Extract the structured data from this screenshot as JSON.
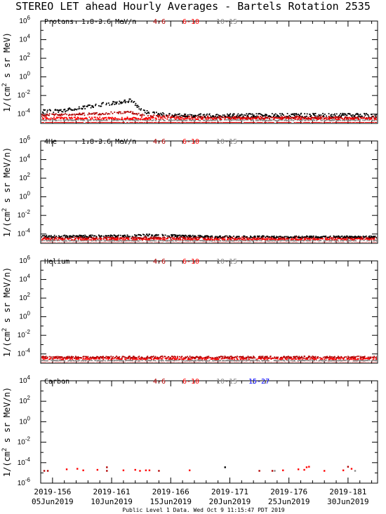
{
  "title": "STEREO LET ahead Hourly Averages - Bartels Rotation 2535",
  "footer": "Public Level 1 Data. Wed Oct  9 11:15:47 PDT 2019",
  "colors": {
    "black": "#000000",
    "dark_red": "#b00000",
    "red": "#ff0000",
    "gray": "#8a8a8a",
    "blue": "#0000ff"
  },
  "x_axis": {
    "range_day_of_year": [
      155,
      183.5
    ],
    "ticks": [
      {
        "day": 156,
        "doy": "2019-156",
        "date": "05Jun2019"
      },
      {
        "day": 161,
        "doy": "2019-161",
        "date": "10Jun2019"
      },
      {
        "day": 166,
        "doy": "2019-166",
        "date": "15Jun2019"
      },
      {
        "day": 171,
        "doy": "2019-171",
        "date": "20Jun2019"
      },
      {
        "day": 176,
        "doy": "2019-176",
        "date": "25Jun2019"
      },
      {
        "day": 181,
        "doy": "2019-181",
        "date": "30Jun2019"
      }
    ]
  },
  "chart_data": [
    {
      "type": "scatter",
      "panel": "Protons",
      "species_label": "Protons",
      "energy_label": "1.8-3.6 MeV/n",
      "legend": [
        {
          "label": "4-6",
          "color": "#b00000"
        },
        {
          "label": "6-10",
          "color": "#ff0000"
        },
        {
          "label": "10-15",
          "color": "#8a8a8a"
        }
      ],
      "ylabel": "1/(cm2 s sr MeV)",
      "yscale": "log",
      "ylim_exp": [
        -5,
        6
      ],
      "ytick_exponents": [
        6,
        4,
        2,
        0,
        -2,
        -4
      ],
      "series": [
        {
          "name": "1.8-3.6 MeV/n",
          "color": "#000000",
          "points": [
            [
              155.0,
              -3.7
            ],
            [
              156.0,
              -3.7
            ],
            [
              157.0,
              -3.6
            ],
            [
              158.0,
              -3.4
            ],
            [
              159.0,
              -3.2
            ],
            [
              160.0,
              -3.0
            ],
            [
              161.0,
              -2.85
            ],
            [
              162.0,
              -2.7
            ],
            [
              162.6,
              -2.5
            ],
            [
              163.0,
              -2.9
            ],
            [
              163.6,
              -3.6
            ],
            [
              164.0,
              -3.8
            ],
            [
              166.0,
              -4.1
            ],
            [
              170.0,
              -4.15
            ],
            [
              175.0,
              -4.1
            ],
            [
              180.0,
              -4.1
            ],
            [
              183.5,
              -4.1
            ]
          ],
          "scatter": 0.18
        },
        {
          "name": "4-6",
          "color": "#b00000",
          "points": [
            [
              155.0,
              -4.1
            ],
            [
              159.0,
              -4.0
            ],
            [
              162.5,
              -3.8
            ],
            [
              164.0,
              -4.2
            ],
            [
              170.0,
              -4.35
            ],
            [
              183.5,
              -4.35
            ]
          ],
          "scatter": 0.12
        },
        {
          "name": "6-10",
          "color": "#ff0000",
          "points": [
            [
              155.0,
              -4.45
            ],
            [
              183.5,
              -4.45
            ]
          ],
          "scatter": 0.12
        },
        {
          "name": "10-15",
          "color": "#8a8a8a",
          "points": [
            [
              155.0,
              -4.65
            ],
            [
              183.5,
              -4.65
            ]
          ],
          "scatter": 0.06
        }
      ]
    },
    {
      "type": "scatter",
      "panel": "4He",
      "species_label": "4He",
      "energy_label": "1.8-3.6 MeV/n",
      "legend": [
        {
          "label": "4-6",
          "color": "#b00000"
        },
        {
          "label": "6-10",
          "color": "#ff0000"
        },
        {
          "label": "10-15",
          "color": "#8a8a8a"
        }
      ],
      "ylabel": "1/(cm2 s sr MeV/n)",
      "yscale": "log",
      "ylim_exp": [
        -5,
        6
      ],
      "ytick_exponents": [
        6,
        4,
        2,
        0,
        -2,
        -4
      ],
      "series": [
        {
          "name": "1.8-3.6 MeV/n",
          "color": "#000000",
          "points": [
            [
              155.0,
              -4.25
            ],
            [
              162.0,
              -4.2
            ],
            [
              164.0,
              -4.1
            ],
            [
              170.0,
              -4.3
            ],
            [
              183.5,
              -4.3
            ]
          ],
          "scatter": 0.1
        },
        {
          "name": "4-6",
          "color": "#b00000",
          "points": [
            [
              155.0,
              -4.4
            ],
            [
              183.5,
              -4.4
            ]
          ],
          "scatter": 0.08
        },
        {
          "name": "6-10",
          "color": "#ff0000",
          "points": [
            [
              155.0,
              -4.55
            ],
            [
              183.5,
              -4.55
            ]
          ],
          "scatter": 0.08
        },
        {
          "name": "10-15",
          "color": "#8a8a8a",
          "points": [
            [
              155.0,
              -4.7
            ],
            [
              183.5,
              -4.7
            ]
          ],
          "scatter": 0.05
        }
      ]
    },
    {
      "type": "scatter",
      "panel": "Helium",
      "species_label": "Helium",
      "energy_label": "",
      "legend": [
        {
          "label": "4-6",
          "color": "#b00000"
        },
        {
          "label": "6-10",
          "color": "#ff0000"
        },
        {
          "label": "10-15",
          "color": "#8a8a8a"
        }
      ],
      "ylabel": "1/(cm2 s sr MeV/n)",
      "yscale": "log",
      "ylim_exp": [
        -5,
        6
      ],
      "ytick_exponents": [
        6,
        4,
        2,
        0,
        -2,
        -4
      ],
      "series": [
        {
          "name": "4-6",
          "color": "#b00000",
          "points": [
            [
              155.0,
              -4.35
            ],
            [
              183.5,
              -4.35
            ]
          ],
          "scatter": 0.1
        },
        {
          "name": "6-10",
          "color": "#ff0000",
          "points": [
            [
              155.0,
              -4.5
            ],
            [
              183.5,
              -4.5
            ]
          ],
          "scatter": 0.1
        },
        {
          "name": "10-15",
          "color": "#8a8a8a",
          "points": [
            [
              155.0,
              -4.7
            ],
            [
              183.5,
              -4.7
            ]
          ],
          "scatter": 0.05
        }
      ]
    },
    {
      "type": "scatter",
      "panel": "Carbon",
      "species_label": "Carbon",
      "energy_label": "",
      "legend": [
        {
          "label": "4-6",
          "color": "#b00000"
        },
        {
          "label": "6-10",
          "color": "#ff0000"
        },
        {
          "label": "10-15",
          "color": "#8a8a8a"
        },
        {
          "label": "15-27",
          "color": "#0000ff"
        }
      ],
      "ylabel": "1/(cm2 s sr MeV/n)",
      "yscale": "log",
      "ylim_exp": [
        -6,
        4
      ],
      "ytick_exponents": [
        4,
        2,
        0,
        -2,
        -4,
        -6
      ],
      "points": [
        {
          "x": 155.3,
          "y": -4.8,
          "c": "#b00000"
        },
        {
          "x": 155.6,
          "y": -4.8,
          "c": "#b00000"
        },
        {
          "x": 157.2,
          "y": -4.65,
          "c": "#ff0000"
        },
        {
          "x": 158.1,
          "y": -4.6,
          "c": "#ff0000"
        },
        {
          "x": 158.6,
          "y": -4.75,
          "c": "#ff0000"
        },
        {
          "x": 159.8,
          "y": -4.7,
          "c": "#ff0000"
        },
        {
          "x": 160.6,
          "y": -4.45,
          "c": "#b00000"
        },
        {
          "x": 160.6,
          "y": -4.8,
          "c": "#b00000"
        },
        {
          "x": 162.0,
          "y": -4.75,
          "c": "#ff0000"
        },
        {
          "x": 163.0,
          "y": -4.7,
          "c": "#ff0000"
        },
        {
          "x": 163.4,
          "y": -4.8,
          "c": "#ff0000"
        },
        {
          "x": 163.9,
          "y": -4.75,
          "c": "#ff0000"
        },
        {
          "x": 164.2,
          "y": -4.75,
          "c": "#ff0000"
        },
        {
          "x": 165.0,
          "y": -4.8,
          "c": "#b00000"
        },
        {
          "x": 167.6,
          "y": -4.75,
          "c": "#ff0000"
        },
        {
          "x": 170.6,
          "y": -4.45,
          "c": "#000000"
        },
        {
          "x": 173.5,
          "y": -4.8,
          "c": "#b00000"
        },
        {
          "x": 174.6,
          "y": -4.8,
          "c": "#b00000"
        },
        {
          "x": 174.8,
          "y": -4.8,
          "c": "#8a8a8a"
        },
        {
          "x": 175.5,
          "y": -4.75,
          "c": "#ff0000"
        },
        {
          "x": 176.8,
          "y": -4.65,
          "c": "#ff0000"
        },
        {
          "x": 177.3,
          "y": -4.7,
          "c": "#ff0000"
        },
        {
          "x": 177.5,
          "y": -4.45,
          "c": "#ff0000"
        },
        {
          "x": 177.7,
          "y": -4.4,
          "c": "#ff0000"
        },
        {
          "x": 179.0,
          "y": -4.8,
          "c": "#ff0000"
        },
        {
          "x": 180.6,
          "y": -4.75,
          "c": "#ff0000"
        },
        {
          "x": 181.0,
          "y": -4.4,
          "c": "#b00000"
        },
        {
          "x": 181.3,
          "y": -4.6,
          "c": "#ff0000"
        },
        {
          "x": 181.6,
          "y": -4.8,
          "c": "#8a8a8a"
        }
      ]
    }
  ]
}
